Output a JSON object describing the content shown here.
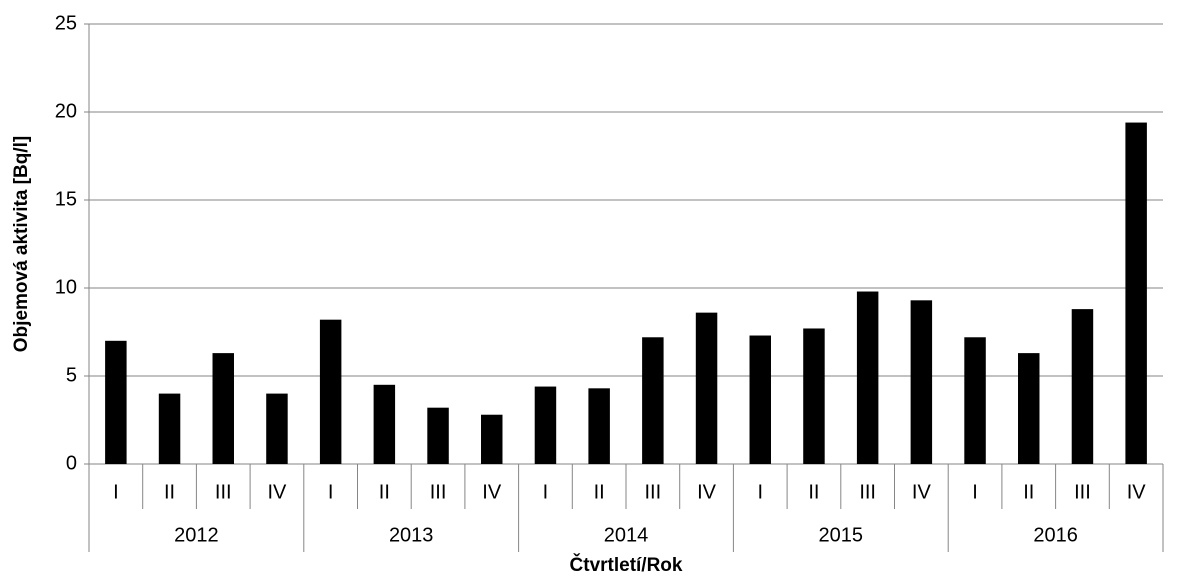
{
  "chart_data": {
    "type": "bar",
    "y_label": "Objemová aktivita [Bq/l]",
    "x_label": "Čtvrtletí/Rok",
    "categories": [
      "I",
      "II",
      "III",
      "IV",
      "I",
      "II",
      "III",
      "IV",
      "I",
      "II",
      "III",
      "IV",
      "I",
      "II",
      "III",
      "IV",
      "I",
      "II",
      "III",
      "IV"
    ],
    "groups": [
      "2012",
      "2013",
      "2014",
      "2015",
      "2016"
    ],
    "values": [
      7.0,
      4.0,
      6.3,
      4.0,
      8.2,
      4.5,
      3.2,
      2.8,
      4.4,
      4.3,
      7.2,
      8.6,
      7.3,
      7.7,
      9.8,
      9.3,
      7.2,
      6.3,
      8.8,
      19.4
    ],
    "color": "#000000",
    "ylim": [
      0,
      25
    ],
    "yticks": [
      0,
      5,
      10,
      15,
      20,
      25
    ],
    "grid": true
  }
}
